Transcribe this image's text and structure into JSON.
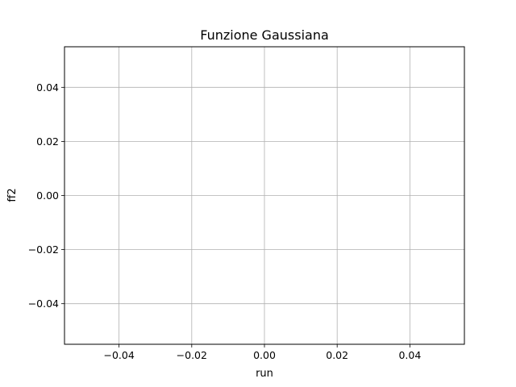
{
  "chart_data": {
    "type": "line",
    "title": "Funzione Gaussiana",
    "xlabel": "run",
    "ylabel": "ff2",
    "xlim": [
      -0.055,
      0.055
    ],
    "ylim": [
      -0.055,
      0.055
    ],
    "xticks": [
      -0.04,
      -0.02,
      0.0,
      0.02,
      0.04
    ],
    "yticks": [
      -0.04,
      -0.02,
      0.0,
      0.02,
      0.04
    ],
    "xtick_labels": [
      "−0.04",
      "−0.02",
      "0.00",
      "0.02",
      "0.04"
    ],
    "ytick_labels": [
      "−0.04",
      "−0.02",
      "0.00",
      "0.02",
      "0.04"
    ],
    "grid": true,
    "series": []
  }
}
